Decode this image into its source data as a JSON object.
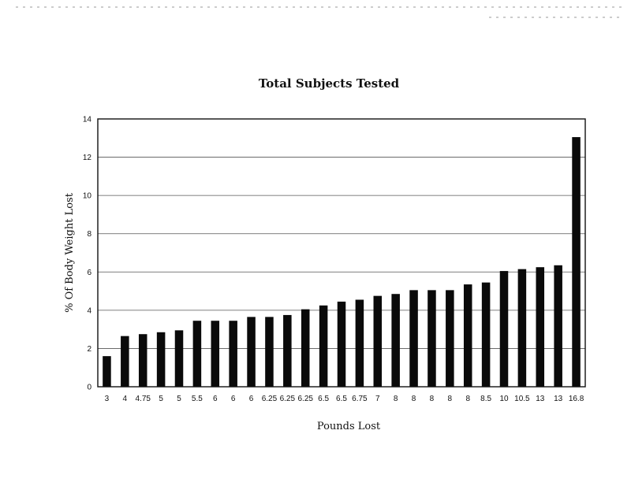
{
  "chart_data": {
    "type": "bar",
    "title": "Total Subjects Tested",
    "xlabel": "Pounds Lost",
    "ylabel": "% Of Body Weight Lost",
    "categories": [
      "3",
      "4",
      "4.75",
      "5",
      "5",
      "5.5",
      "6",
      "6",
      "6",
      "6.25",
      "6.25",
      "6.25",
      "6.5",
      "6.5",
      "6.75",
      "7",
      "8",
      "8",
      "8",
      "8",
      "8",
      "8.5",
      "10",
      "10.5",
      "13",
      "13",
      "16.8"
    ],
    "values": [
      1.6,
      2.65,
      2.75,
      2.85,
      2.95,
      3.45,
      3.45,
      3.45,
      3.65,
      3.65,
      3.75,
      4.05,
      4.25,
      4.45,
      4.55,
      4.75,
      4.85,
      5.05,
      5.05,
      5.05,
      5.35,
      5.45,
      6.05,
      6.15,
      6.25,
      6.35,
      13.05
    ],
    "ylim": [
      0,
      14
    ],
    "yticks": [
      0,
      2,
      4,
      6,
      8,
      10,
      12,
      14
    ],
    "grid": true,
    "legend": "none",
    "bar_color": "#0a0a0a"
  }
}
